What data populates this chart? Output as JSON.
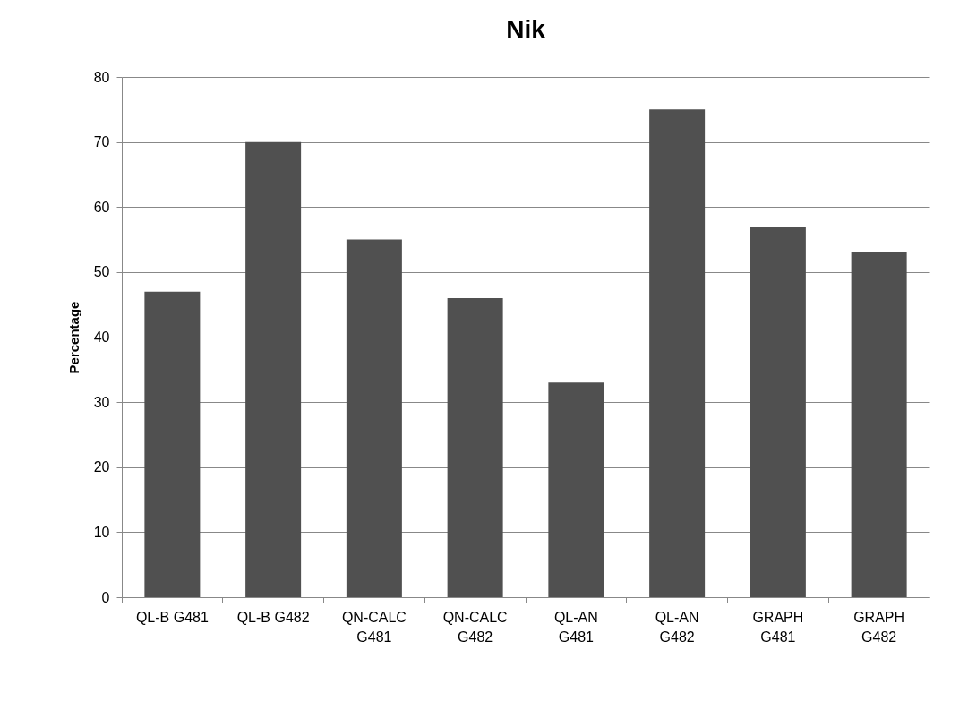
{
  "chart_data": {
    "type": "bar",
    "title": "Nik",
    "ylabel": "Percentage",
    "categories": [
      "QL-B G481",
      "QL-B G482",
      "QN-CALC G481",
      "QN-CALC G482",
      "QL-AN G481",
      "QL-AN G482",
      "GRAPH G481",
      "GRAPH G482"
    ],
    "values": [
      47,
      70,
      55,
      46,
      33,
      75,
      57,
      53
    ],
    "color": "#505050",
    "ylim": [
      0,
      80
    ],
    "yticks": [
      0,
      10,
      20,
      30,
      40,
      50,
      60,
      70,
      80
    ],
    "grid": "y"
  }
}
